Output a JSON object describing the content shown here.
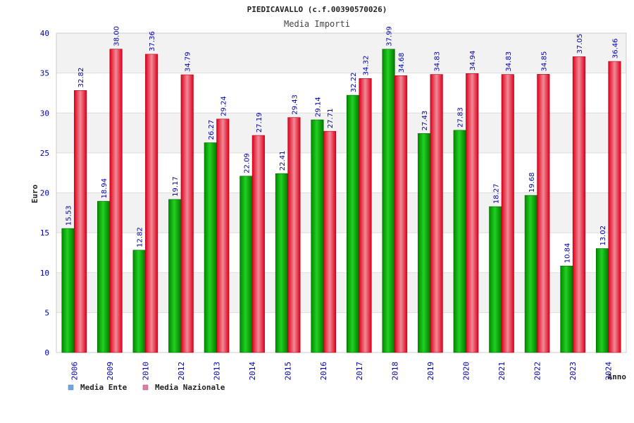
{
  "chart_data": {
    "type": "bar",
    "title": "PIEDICAVALLO (c.f.00390570026)",
    "subtitle": "Media Importi",
    "xlabel": "Anno",
    "ylabel": "Euro",
    "ylim": [
      0,
      40
    ],
    "yticks": [
      0,
      5,
      10,
      15,
      20,
      25,
      30,
      35,
      40
    ],
    "categories": [
      "2006",
      "2009",
      "2010",
      "2012",
      "2013",
      "2014",
      "2015",
      "2016",
      "2017",
      "2018",
      "2019",
      "2020",
      "2021",
      "2022",
      "2023",
      "2024"
    ],
    "series": [
      {
        "name": "Media Ente",
        "color": "#00b400",
        "values": [
          15.53,
          18.94,
          12.82,
          19.17,
          26.27,
          22.09,
          22.41,
          29.14,
          32.22,
          37.99,
          27.43,
          27.83,
          18.27,
          19.68,
          10.84,
          13.02
        ]
      },
      {
        "name": "Media Nazionale",
        "color": "#e8102a",
        "values": [
          32.82,
          38.0,
          37.36,
          34.79,
          29.24,
          27.19,
          29.43,
          27.71,
          34.32,
          34.68,
          34.83,
          34.94,
          34.83,
          34.85,
          37.05,
          36.46
        ]
      }
    ],
    "legend": {
      "position": "bottom-left",
      "items": [
        {
          "label": "Media Ente",
          "color": "#6aa7e8"
        },
        {
          "label": "Media Nazionale",
          "color": "#e07aa6"
        }
      ]
    },
    "grid": true,
    "colors": {
      "band": "#f2f2f2",
      "gridline": "#dddddd",
      "axis": "#cccccc",
      "tick_text": "#0000aa",
      "title_text": "#222222",
      "subtitle_text": "#444444"
    }
  }
}
